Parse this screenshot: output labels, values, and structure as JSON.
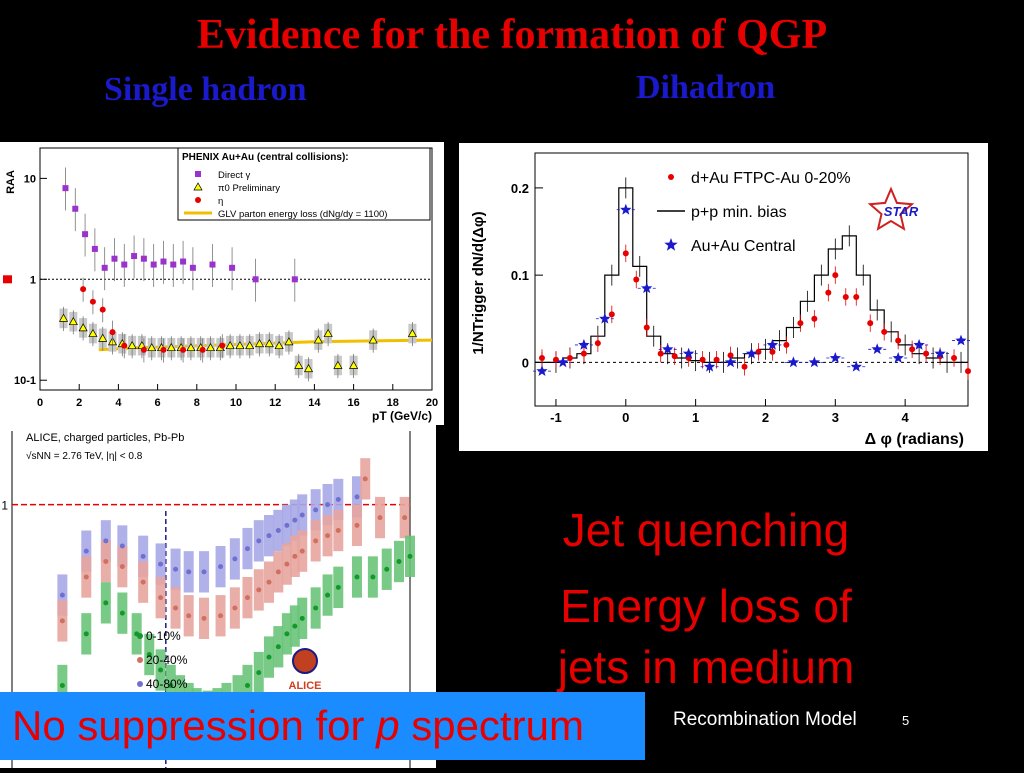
{
  "slide": {
    "title": "Evidence for the formation of QGP",
    "subtitle_left": "Single hadron",
    "subtitle_right": "Dihadron",
    "text_jet_quenching": "Jet quenching",
    "text_energy_loss_1": "Energy loss of",
    "text_energy_loss_2": "jets in medium",
    "banner_pre": "No suppression for ",
    "banner_p": "p",
    "banner_post": " spectrum",
    "footer_label": "Recombination Model",
    "page_number": "5",
    "colors": {
      "title": "#e60000",
      "subtitle": "#1a1acc",
      "banner_bg": "#1a8cff"
    }
  },
  "chart_data": [
    {
      "type": "scatter",
      "yscale": "log",
      "xlim": [
        0,
        20
      ],
      "ylim": [
        0.08,
        20
      ],
      "xlabel": "pT (GeV/c)",
      "ylabel": "RAA",
      "xticks": [
        "0",
        "2",
        "4",
        "6",
        "8",
        "10",
        "12",
        "14",
        "16",
        "18",
        "20"
      ],
      "yticks": [
        "10",
        "1",
        "10-1"
      ],
      "legend_title": "PHENIX Au+Au (central collisions):",
      "legend_position": "top-right",
      "reference_line": 1,
      "series": [
        {
          "name": "Direct γ",
          "color": "#9933cc",
          "marker": "square",
          "x": [
            1.3,
            1.8,
            2.3,
            2.8,
            3.3,
            3.8,
            4.3,
            4.8,
            5.3,
            5.8,
            6.3,
            6.8,
            7.3,
            7.8,
            8.8,
            9.8,
            11.0,
            13.0
          ],
          "y": [
            8.0,
            5.0,
            2.8,
            2.0,
            1.3,
            1.6,
            1.4,
            1.7,
            1.6,
            1.4,
            1.5,
            1.4,
            1.5,
            1.3,
            1.4,
            1.3,
            1.0,
            1.0
          ]
        },
        {
          "name": "π0 Preliminary",
          "color": "#ffff00",
          "marker": "triangle",
          "x": [
            1.2,
            1.7,
            2.2,
            2.7,
            3.2,
            3.7,
            4.2,
            4.7,
            5.2,
            5.7,
            6.2,
            6.7,
            7.2,
            7.7,
            8.2,
            8.7,
            9.2,
            9.7,
            10.2,
            10.7,
            11.2,
            11.7,
            12.2,
            12.7,
            13.2,
            13.7,
            14.2,
            14.7,
            15.2,
            16.0,
            17.0,
            19.0
          ],
          "y": [
            0.41,
            0.38,
            0.33,
            0.29,
            0.26,
            0.24,
            0.23,
            0.22,
            0.22,
            0.21,
            0.21,
            0.21,
            0.21,
            0.21,
            0.21,
            0.21,
            0.21,
            0.22,
            0.22,
            0.22,
            0.23,
            0.23,
            0.22,
            0.24,
            0.14,
            0.13,
            0.25,
            0.29,
            0.14,
            0.14,
            0.25,
            0.29
          ]
        },
        {
          "name": "η",
          "color": "#e60000",
          "marker": "circle",
          "x": [
            2.2,
            2.7,
            3.2,
            3.7,
            4.3,
            5.3,
            6.3,
            7.3,
            8.3,
            9.3
          ],
          "y": [
            0.8,
            0.6,
            0.5,
            0.3,
            0.22,
            0.2,
            0.2,
            0.2,
            0.2,
            0.22
          ]
        },
        {
          "name": "GLV parton energy loss (dNg/dy = 1100)",
          "color": "#f0c000",
          "marker": "line",
          "x": [
            3,
            5,
            8,
            11,
            14,
            17,
            20
          ],
          "y": [
            0.2,
            0.21,
            0.22,
            0.23,
            0.24,
            0.245,
            0.25
          ]
        }
      ]
    },
    {
      "type": "line",
      "xlim": [
        -1.3,
        4.9
      ],
      "ylim": [
        -0.05,
        0.24
      ],
      "xlabel": "Δ φ (radians)",
      "ylabel": "1/NTrigger dN/d(Δφ)",
      "xticks": [
        "-1",
        "0",
        "1",
        "2",
        "3",
        "4"
      ],
      "yticks": [
        "0",
        "0.1",
        "0.2"
      ],
      "logo": "STAR",
      "legend_position": "top-right",
      "series": [
        {
          "name": "d+Au FTPC-Au 0-20%",
          "color": "#e60000",
          "marker": "circle",
          "x": [
            -1.2,
            -1.0,
            -0.8,
            -0.6,
            -0.4,
            -0.2,
            0.0,
            0.15,
            0.3,
            0.5,
            0.7,
            0.9,
            1.1,
            1.3,
            1.5,
            1.7,
            1.9,
            2.1,
            2.3,
            2.5,
            2.7,
            2.9,
            3.0,
            3.15,
            3.3,
            3.5,
            3.7,
            3.9,
            4.1,
            4.3,
            4.5,
            4.7,
            4.9
          ],
          "y": [
            0.005,
            0.003,
            0.005,
            0.01,
            0.022,
            0.055,
            0.125,
            0.095,
            0.04,
            0.01,
            0.007,
            0.005,
            0.003,
            0.003,
            0.008,
            -0.005,
            0.012,
            0.012,
            0.02,
            0.045,
            0.05,
            0.08,
            0.1,
            0.075,
            0.075,
            0.045,
            0.035,
            0.025,
            0.015,
            0.01,
            0.007,
            0.005,
            -0.01
          ]
        },
        {
          "name": "p+p min. bias",
          "color": "#000000",
          "marker": "step",
          "x": [
            -1.2,
            -1.0,
            -0.8,
            -0.6,
            -0.4,
            -0.2,
            0.0,
            0.2,
            0.4,
            0.6,
            0.8,
            1.0,
            1.2,
            1.4,
            1.6,
            1.8,
            2.0,
            2.2,
            2.4,
            2.6,
            2.8,
            3.0,
            3.2,
            3.4,
            3.6,
            3.8,
            4.0,
            4.2,
            4.4,
            4.6,
            4.8
          ],
          "y": [
            0.0,
            0.0,
            0.005,
            0.01,
            0.03,
            0.1,
            0.2,
            0.11,
            0.03,
            0.01,
            0.005,
            0.002,
            0.0,
            0.0,
            0.005,
            0.01,
            0.015,
            0.025,
            0.04,
            0.07,
            0.1,
            0.13,
            0.145,
            0.1,
            0.06,
            0.035,
            0.02,
            0.01,
            0.005,
            0.0,
            0.0
          ]
        },
        {
          "name": "Au+Au Central",
          "color": "#1a1acc",
          "marker": "star",
          "x": [
            -1.2,
            -0.9,
            -0.6,
            -0.3,
            0.0,
            0.3,
            0.6,
            0.9,
            1.2,
            1.5,
            1.8,
            2.1,
            2.4,
            2.7,
            3.0,
            3.3,
            3.6,
            3.9,
            4.2,
            4.5,
            4.8
          ],
          "y": [
            -0.01,
            0.0,
            0.02,
            0.05,
            0.175,
            0.085,
            0.015,
            0.01,
            -0.005,
            0.0,
            0.01,
            0.02,
            0.0,
            0.0,
            0.005,
            -0.005,
            0.015,
            0.005,
            0.02,
            0.01,
            0.025
          ]
        }
      ]
    },
    {
      "type": "scatter",
      "xlim": [
        0,
        20
      ],
      "ylim": [
        0,
        1.2
      ],
      "title": "ALICE, charged particles, Pb-Pb",
      "subtitle": "√sNN = 2.76 TeV, |η| < 0.8",
      "yticks": [
        "1"
      ],
      "logo": "ALICE",
      "legend_position": "bottom-center",
      "reference_line": 1,
      "series": [
        {
          "name": "0-10%",
          "color": "#11992a",
          "marker": "circle",
          "x": [
            0.3,
            0.5,
            0.7,
            0.9,
            1.1,
            1.3,
            1.5,
            1.7,
            1.9,
            2.1,
            2.3,
            2.6,
            2.9,
            3.2,
            3.6,
            4.0,
            4.5,
            5.0,
            5.5,
            6.0,
            6.5,
            7.0,
            8.0,
            9.0,
            10.0,
            12.0,
            14.0,
            16.0,
            18.0,
            20.0
          ],
          "y": [
            0.3,
            0.5,
            0.62,
            0.58,
            0.5,
            0.42,
            0.36,
            0.3,
            0.26,
            0.23,
            0.21,
            0.2,
            0.21,
            0.23,
            0.26,
            0.3,
            0.35,
            0.41,
            0.45,
            0.5,
            0.53,
            0.56,
            0.6,
            0.65,
            0.68,
            0.72,
            0.72,
            0.75,
            0.78,
            0.8
          ]
        },
        {
          "name": "20-40%",
          "color": "#d07060",
          "marker": "circle",
          "x": [
            0.3,
            0.5,
            0.7,
            0.9,
            1.2,
            1.5,
            1.8,
            2.1,
            2.5,
            3.0,
            3.5,
            4.0,
            4.5,
            5.0,
            5.5,
            6.0,
            6.5,
            7.0,
            8.0,
            9.0,
            10.0,
            12.0,
            13.0,
            15.0,
            19.0
          ],
          "y": [
            0.55,
            0.72,
            0.78,
            0.76,
            0.7,
            0.64,
            0.6,
            0.57,
            0.56,
            0.57,
            0.6,
            0.64,
            0.67,
            0.7,
            0.74,
            0.77,
            0.8,
            0.82,
            0.86,
            0.88,
            0.9,
            0.92,
            1.1,
            0.95,
            0.95
          ]
        },
        {
          "name": "40-80%",
          "color": "#7070d0",
          "marker": "circle",
          "x": [
            0.3,
            0.5,
            0.7,
            0.9,
            1.2,
            1.5,
            1.8,
            2.1,
            2.5,
            3.0,
            3.5,
            4.0,
            4.5,
            5.0,
            5.5,
            6.0,
            6.5,
            7.0,
            8.0,
            9.0,
            10.0,
            12.0
          ],
          "y": [
            0.65,
            0.82,
            0.86,
            0.84,
            0.8,
            0.77,
            0.75,
            0.74,
            0.74,
            0.76,
            0.79,
            0.83,
            0.86,
            0.88,
            0.9,
            0.92,
            0.94,
            0.96,
            0.98,
            1.0,
            1.02,
            1.03
          ]
        }
      ]
    }
  ]
}
